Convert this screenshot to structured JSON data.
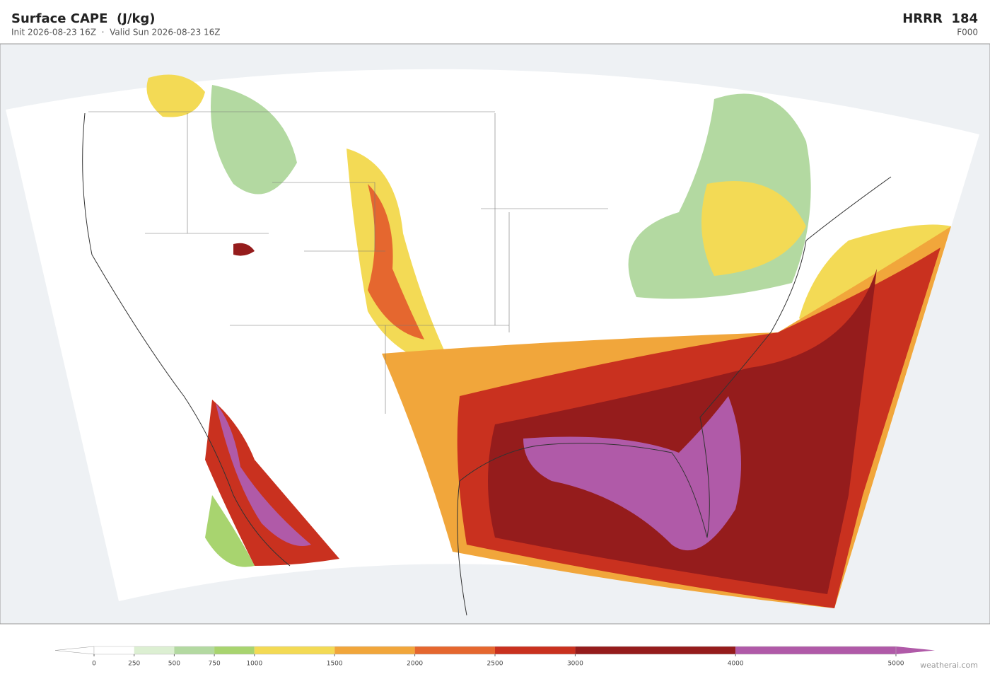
{
  "header": {
    "title": "Surface CAPE  (J/kg)",
    "subtitle": "Init 2026-08-23 16Z  ·  Valid Sun 2026-08-23 16Z",
    "model": "HRRR  184",
    "forecast_hour": "F000"
  },
  "colorbar": {
    "lim": [
      0,
      5000
    ],
    "ticks": [
      0,
      250,
      500,
      750,
      1000,
      1500,
      2000,
      2500,
      3000,
      4000,
      5000
    ],
    "colors": [
      "#ffffff",
      "#dcefd2",
      "#b3d9a1",
      "#a8d46f",
      "#f3da55",
      "#f1a63b",
      "#e5672f",
      "#c9311f",
      "#951c1c",
      "#b05aa8"
    ]
  },
  "footer": {
    "credit": "weatherai.com"
  }
}
